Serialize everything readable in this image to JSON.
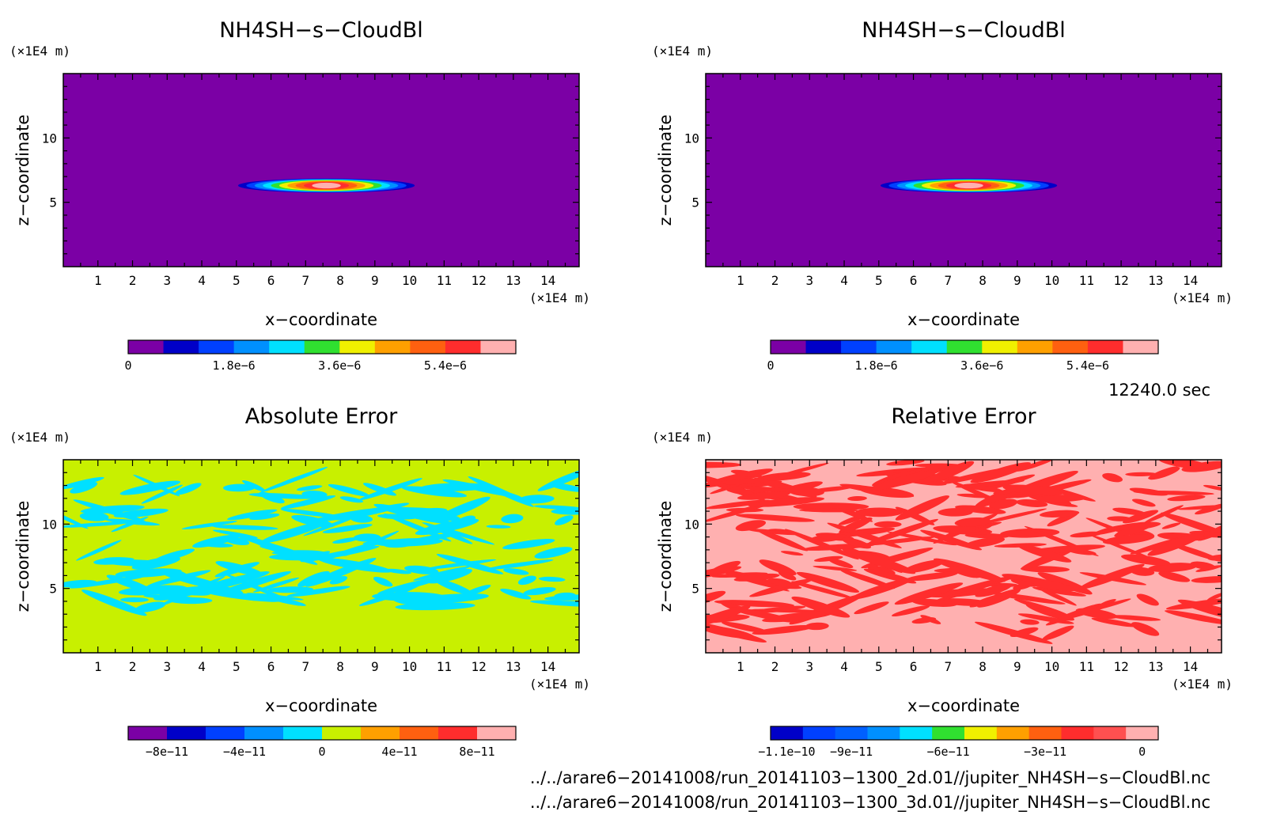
{
  "chart_data": [
    {
      "type": "heatmap",
      "title": "NH4SH−s−CloudBl",
      "xlabel": "x−coordinate",
      "ylabel": "z−coordinate",
      "x_unit": "(×1E4 m)",
      "y_unit": "(×1E4 m)",
      "xlim": [
        0,
        14.9
      ],
      "ylim": [
        0,
        15
      ],
      "x_ticks": [
        "1",
        "2",
        "3",
        "4",
        "5",
        "6",
        "7",
        "8",
        "9",
        "10",
        "11",
        "12",
        "13",
        "14"
      ],
      "y_ticks": [
        "5",
        "10"
      ],
      "field": "gaussian_blob",
      "blob": {
        "center_x": 7.6,
        "center_z": 6.3,
        "half_width_x": 2.55,
        "half_height_z": 0.55
      },
      "colorbar": {
        "range": [
          0,
          6.6e-06
        ],
        "colors": [
          "#7b00a5",
          "#0000c8",
          "#0040ff",
          "#0090ff",
          "#00e0ff",
          "#30e030",
          "#f0f000",
          "#ffa000",
          "#ff6010",
          "#ff2d2d",
          "#ffb0b0"
        ],
        "tick_labels": [
          "0",
          "1.8e−6",
          "3.6e−6",
          "5.4e−6"
        ],
        "tick_values": [
          0,
          1.8e-06,
          3.6e-06,
          5.4e-06
        ]
      }
    },
    {
      "type": "heatmap",
      "title": "NH4SH−s−CloudBl",
      "xlabel": "x−coordinate",
      "ylabel": "z−coordinate",
      "x_unit": "(×1E4 m)",
      "y_unit": "(×1E4 m)",
      "xlim": [
        0,
        14.9
      ],
      "ylim": [
        0,
        15
      ],
      "x_ticks": [
        "1",
        "2",
        "3",
        "4",
        "5",
        "6",
        "7",
        "8",
        "9",
        "10",
        "11",
        "12",
        "13",
        "14"
      ],
      "y_ticks": [
        "5",
        "10"
      ],
      "field": "gaussian_blob",
      "blob": {
        "center_x": 7.6,
        "center_z": 6.3,
        "half_width_x": 2.55,
        "half_height_z": 0.55
      },
      "colorbar": {
        "range": [
          0,
          6.6e-06
        ],
        "colors": [
          "#7b00a5",
          "#0000c8",
          "#0040ff",
          "#0090ff",
          "#00e0ff",
          "#30e030",
          "#f0f000",
          "#ffa000",
          "#ff6010",
          "#ff2d2d",
          "#ffb0b0"
        ],
        "tick_labels": [
          "0",
          "1.8e−6",
          "3.6e−6",
          "5.4e−6"
        ],
        "tick_values": [
          0,
          1.8e-06,
          3.6e-06,
          5.4e-06
        ]
      }
    },
    {
      "type": "heatmap",
      "title": "Absolute Error",
      "xlabel": "x−coordinate",
      "ylabel": "z−coordinate",
      "x_unit": "(×1E4 m)",
      "y_unit": "(×1E4 m)",
      "xlim": [
        0,
        14.9
      ],
      "ylim": [
        0,
        15
      ],
      "x_ticks": [
        "1",
        "2",
        "3",
        "4",
        "5",
        "6",
        "7",
        "8",
        "9",
        "10",
        "11",
        "12",
        "13",
        "14"
      ],
      "y_ticks": [
        "5",
        "10"
      ],
      "field": "noise_patches",
      "background_color": "#c8f000",
      "patch_color": "#00e0ff",
      "patch_zone_z": [
        3.5,
        13.5
      ],
      "colorbar": {
        "range": [
          -1e-10,
          1e-10
        ],
        "colors": [
          "#7b00a5",
          "#0000c8",
          "#0040ff",
          "#0090ff",
          "#00e0ff",
          "#c8f000",
          "#ffa000",
          "#ff6010",
          "#ff2d2d",
          "#ffb0b0"
        ],
        "tick_labels": [
          "−8e−11",
          "−4e−11",
          "0",
          "4e−11",
          "8e−11"
        ],
        "tick_values": [
          -8e-11,
          -4e-11,
          0,
          4e-11,
          8e-11
        ]
      }
    },
    {
      "type": "heatmap",
      "title": "Relative Error",
      "xlabel": "x−coordinate",
      "ylabel": "z−coordinate",
      "x_unit": "(×1E4 m)",
      "y_unit": "(×1E4 m)",
      "xlim": [
        0,
        14.9
      ],
      "ylim": [
        0,
        15
      ],
      "x_ticks": [
        "1",
        "2",
        "3",
        "4",
        "5",
        "6",
        "7",
        "8",
        "9",
        "10",
        "11",
        "12",
        "13",
        "14"
      ],
      "y_ticks": [
        "5",
        "10"
      ],
      "field": "noise_patches",
      "background_color": "#ffb0b0",
      "patch_color": "#ff2d2d",
      "patch_zone_z": [
        1.5,
        14.8
      ],
      "colorbar": {
        "range": [
          -1.15e-10,
          5e-12
        ],
        "colors": [
          "#0000c8",
          "#0040ff",
          "#0060ff",
          "#0090ff",
          "#00e0ff",
          "#30e030",
          "#f0f000",
          "#ffa000",
          "#ff6010",
          "#ff2d2d",
          "#ff5050",
          "#ffb0b0"
        ],
        "tick_labels": [
          "−1.1e−10",
          "−9e−11",
          "−6e−11",
          "−3e−11",
          "0"
        ],
        "tick_values": [
          -1.1e-10,
          -9e-11,
          -6e-11,
          -3e-11,
          0
        ]
      }
    }
  ],
  "time_label": "12240.0 sec",
  "file_paths": [
    "../../arare6−20141008/run_20141103−1300_2d.01//jupiter_NH4SH−s−CloudBl.nc",
    "../../arare6−20141008/run_20141103−1300_3d.01//jupiter_NH4SH−s−CloudBl.nc"
  ]
}
